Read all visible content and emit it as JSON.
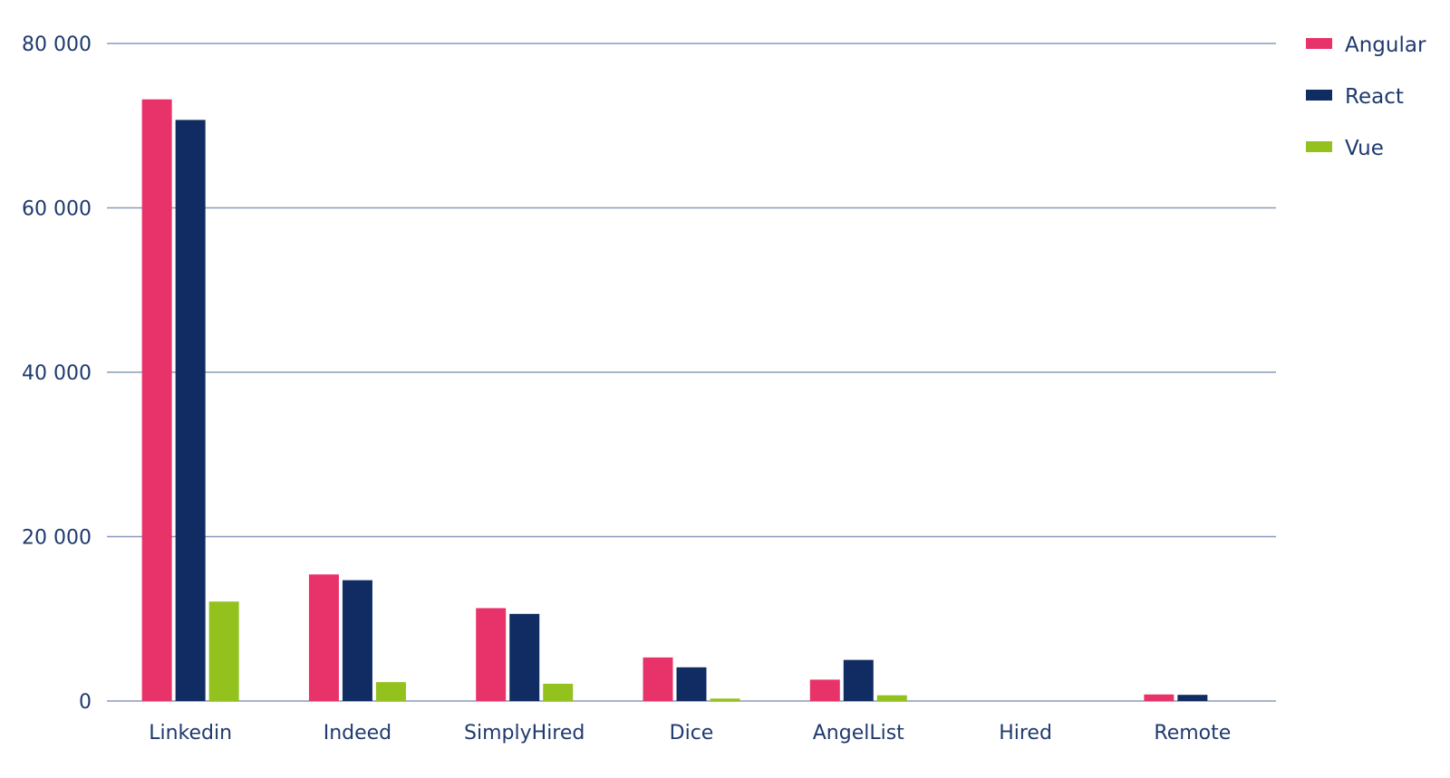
{
  "chart_data": {
    "type": "bar",
    "categories": [
      "Linkedin",
      "Indeed",
      "SimplyHired",
      "Dice",
      "AngelList",
      "Hired",
      "Remote"
    ],
    "series": [
      {
        "name": "Angular",
        "color": "#e8336a",
        "values": [
          73200,
          15400,
          11300,
          5300,
          2600,
          0,
          800
        ]
      },
      {
        "name": "React",
        "color": "#112c63",
        "values": [
          70700,
          14700,
          10600,
          4100,
          5000,
          0,
          750
        ]
      },
      {
        "name": "Vue",
        "color": "#93c21e",
        "values": [
          12100,
          2300,
          2100,
          300,
          700,
          0,
          0
        ]
      }
    ],
    "y_ticks": [
      0,
      20000,
      40000,
      60000,
      80000
    ],
    "y_tick_labels": [
      "0",
      "20 000",
      "40 000",
      "60 000",
      "80 000"
    ],
    "ylim": [
      0,
      80000
    ],
    "grid": true,
    "legend_position": "top-right"
  }
}
